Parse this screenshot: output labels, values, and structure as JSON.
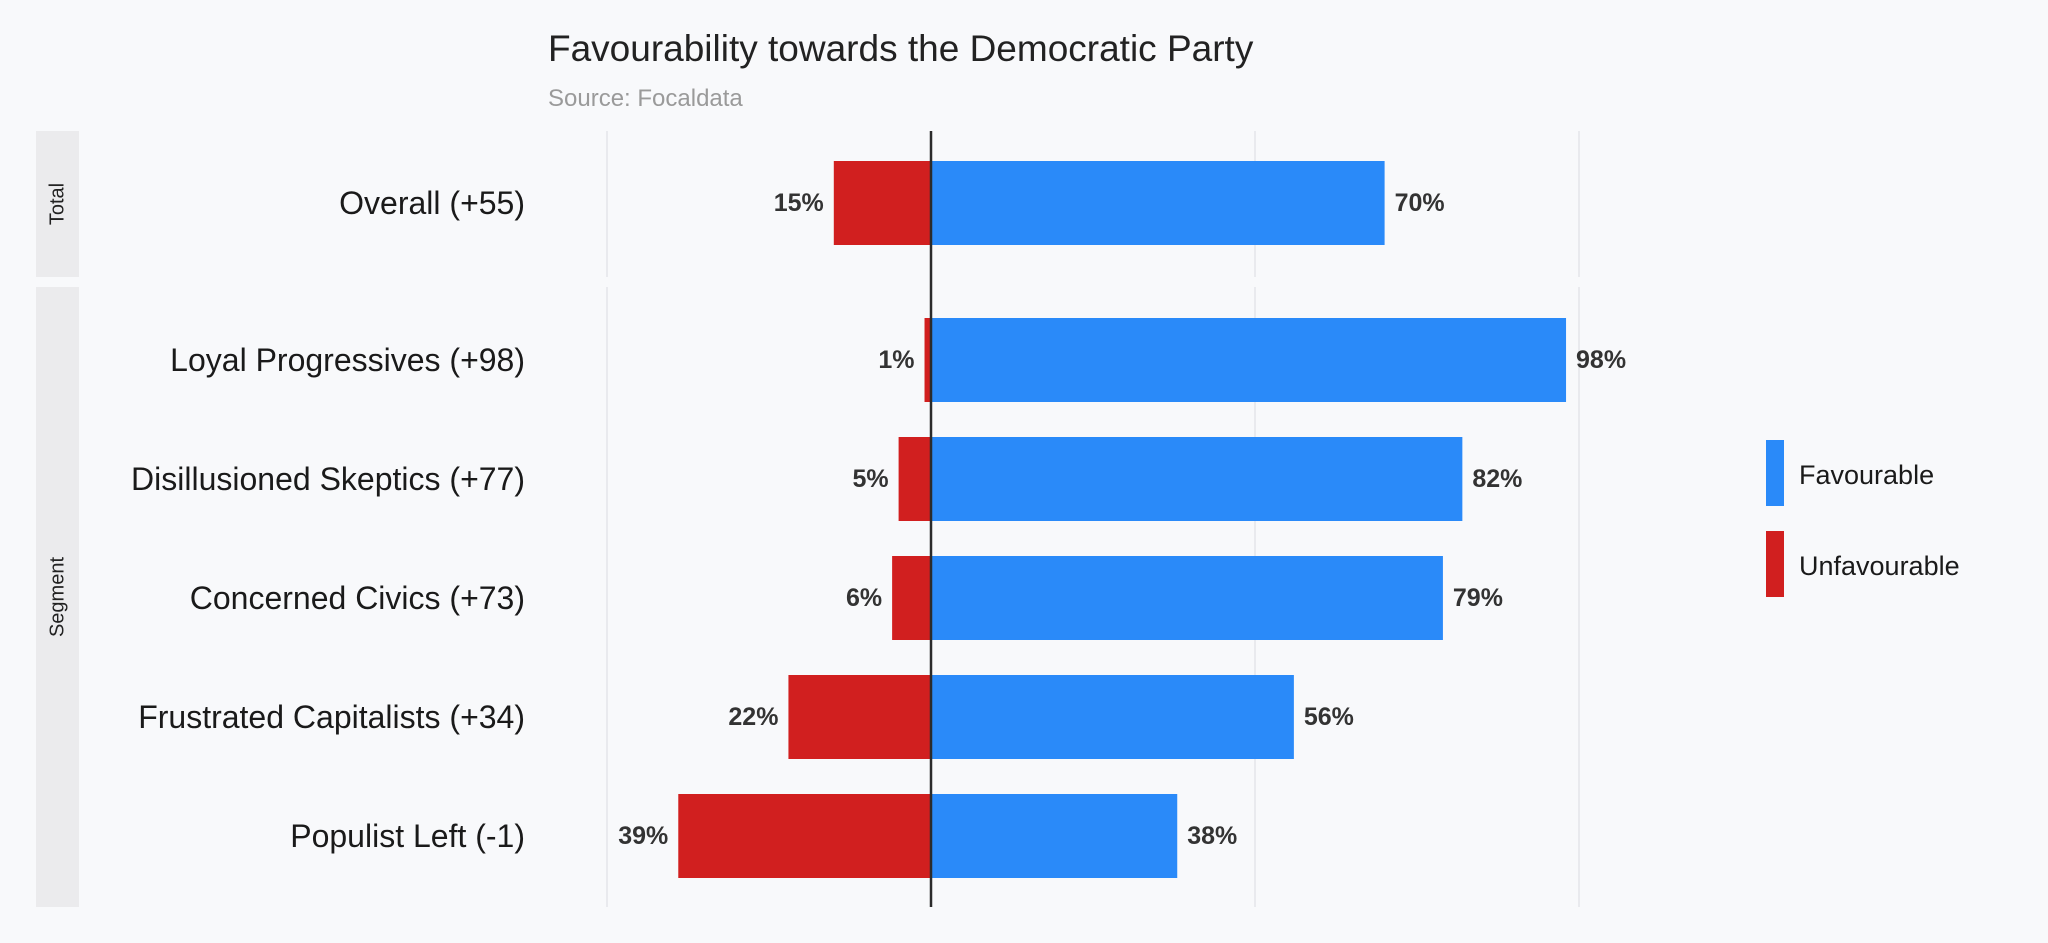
{
  "chart_data": {
    "type": "bar",
    "orientation": "horizontal-diverging",
    "title": "Favourability towards the Democratic Party",
    "subtitle": "Source: Focaldata",
    "groups": [
      {
        "name": "Total",
        "rows": [
          {
            "label": "Overall (+55)",
            "unfavourable": 15,
            "favourable": 70
          }
        ]
      },
      {
        "name": "Segment",
        "rows": [
          {
            "label": "Loyal Progressives (+98)",
            "unfavourable": 1,
            "favourable": 98
          },
          {
            "label": "Disillusioned Skeptics (+77)",
            "unfavourable": 5,
            "favourable": 82
          },
          {
            "label": "Concerned Civics (+73)",
            "unfavourable": 6,
            "favourable": 79
          },
          {
            "label": "Frustrated Capitalists (+34)",
            "unfavourable": 22,
            "favourable": 56
          },
          {
            "label": "Populist Left (-1)",
            "unfavourable": 39,
            "favourable": 38
          }
        ]
      }
    ],
    "xlim": [
      -50,
      100
    ],
    "gridlines": [
      -50,
      0,
      50,
      100
    ],
    "series": [
      {
        "name": "Favourable",
        "color": "#2a8af9"
      },
      {
        "name": "Unfavourable",
        "color": "#d11f1f"
      }
    ],
    "legend": "right",
    "value_suffix": "%"
  }
}
